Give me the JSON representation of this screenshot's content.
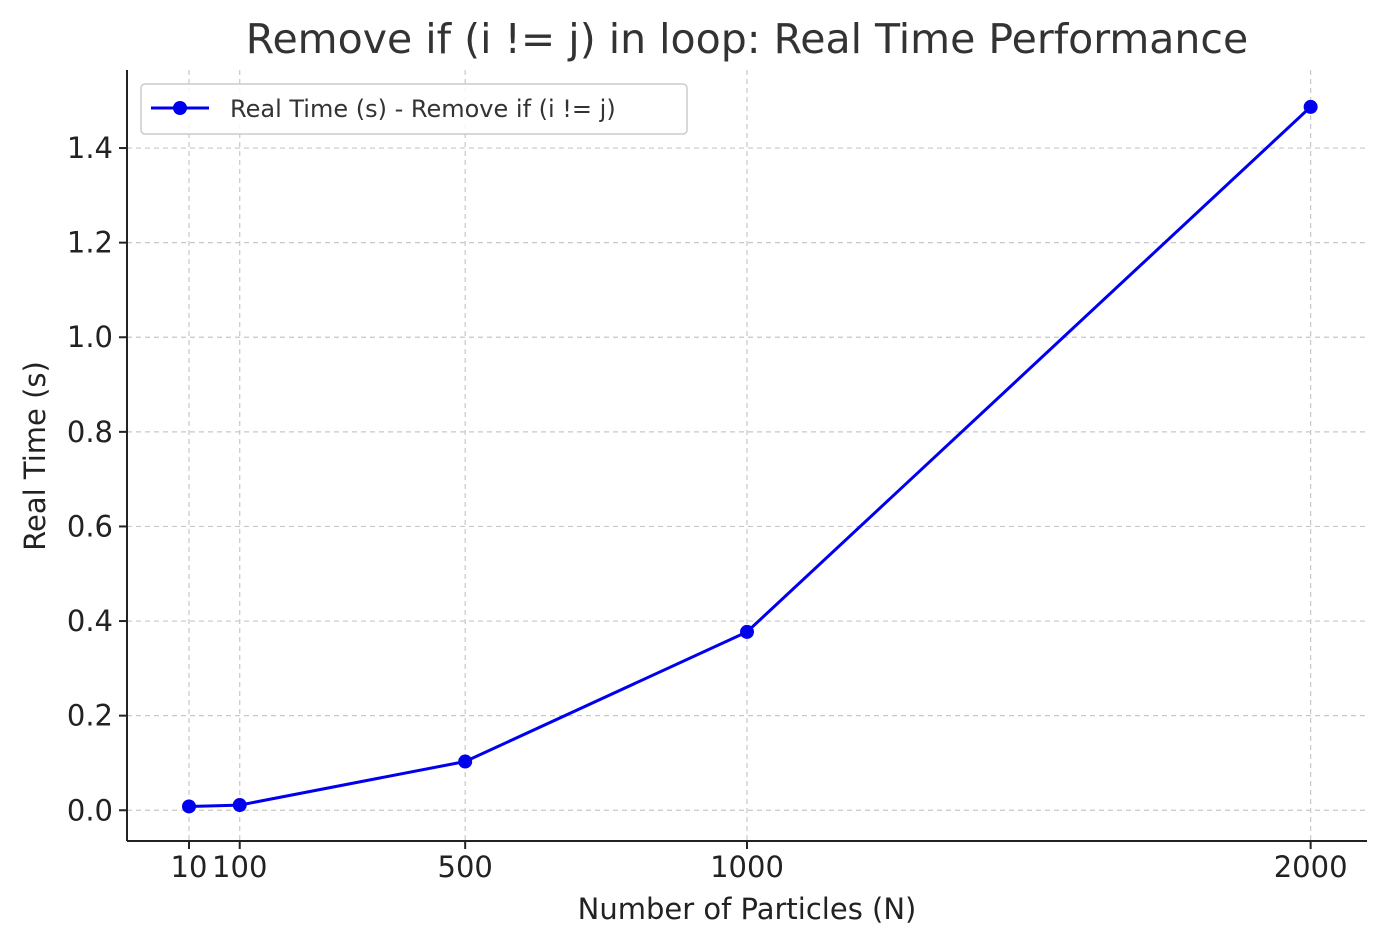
{
  "chart_data": {
    "type": "line",
    "title": "Remove if (i != j) in loop: Real Time Performance",
    "xlabel": "Number of Particles (N)",
    "ylabel": "Real Time (s)",
    "xlim": [
      -100,
      2100
    ],
    "ylim": [
      -0.065,
      1.565
    ],
    "xticks": [
      10,
      100,
      500,
      1000,
      2000
    ],
    "xtick_labels": [
      "10",
      "100",
      "500",
      "1000",
      "2000"
    ],
    "yticks": [
      0.0,
      0.2,
      0.4,
      0.6,
      0.8,
      1.0,
      1.2,
      1.4
    ],
    "ytick_labels": [
      "0.0",
      "0.2",
      "0.4",
      "0.6",
      "0.8",
      "1.0",
      "1.2",
      "1.4"
    ],
    "grid": true,
    "legend_position": "upper-left",
    "series": [
      {
        "name": "Real Time (s) - Remove if (i != j)",
        "color": "#0000ee",
        "marker": "circle",
        "x": [
          10,
          100,
          500,
          1000,
          2000
        ],
        "y": [
          0.008,
          0.011,
          0.103,
          0.377,
          1.487
        ]
      }
    ]
  }
}
